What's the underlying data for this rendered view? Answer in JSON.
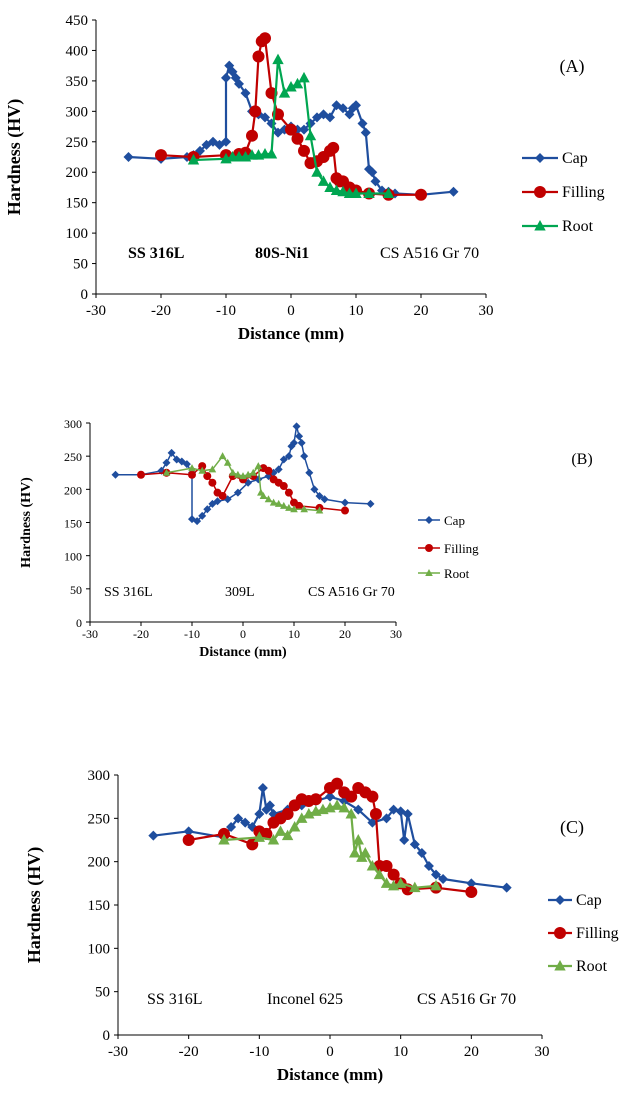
{
  "chart_data": [
    {
      "type": "line",
      "panel_label": "(A)",
      "xlabel": "Distance (mm)",
      "ylabel": "Hardness (HV)",
      "xlim": [
        -30,
        30
      ],
      "ylim": [
        0,
        450
      ],
      "xticks": [
        -30,
        -20,
        -10,
        0,
        10,
        20,
        30
      ],
      "yticks": [
        0,
        50,
        100,
        150,
        200,
        250,
        300,
        350,
        400,
        450
      ],
      "region_labels": [
        "SS 316L",
        "80S-Ni1",
        "CS A516 Gr 70"
      ],
      "legend_position": "right",
      "series": [
        {
          "name": "Cap",
          "color": "#1F4E9E",
          "marker": "diamond",
          "points": [
            [
              -25,
              225
            ],
            [
              -20,
              222
            ],
            [
              -16,
              225
            ],
            [
              -15,
              228
            ],
            [
              -14,
              235
            ],
            [
              -13,
              245
            ],
            [
              -12,
              250
            ],
            [
              -11,
              245
            ],
            [
              -10,
              250
            ],
            [
              -10,
              355
            ],
            [
              -9.5,
              375
            ],
            [
              -9,
              365
            ],
            [
              -8.5,
              355
            ],
            [
              -8,
              345
            ],
            [
              -7,
              330
            ],
            [
              -6,
              300
            ],
            [
              -5,
              295
            ],
            [
              -4,
              290
            ],
            [
              -3,
              280
            ],
            [
              -2,
              265
            ],
            [
              -1,
              270
            ],
            [
              0,
              275
            ],
            [
              1,
              270
            ],
            [
              2,
              270
            ],
            [
              3,
              280
            ],
            [
              4,
              290
            ],
            [
              5,
              295
            ],
            [
              6,
              290
            ],
            [
              7,
              310
            ],
            [
              8,
              305
            ],
            [
              9,
              295
            ],
            [
              9.5,
              305
            ],
            [
              10,
              310
            ],
            [
              11,
              280
            ],
            [
              11.5,
              265
            ],
            [
              12,
              205
            ],
            [
              12.5,
              200
            ],
            [
              13,
              185
            ],
            [
              14,
              170
            ],
            [
              15,
              168
            ],
            [
              16,
              165
            ],
            [
              20,
              163
            ],
            [
              25,
              168
            ]
          ]
        },
        {
          "name": "Filling",
          "color": "#C00000",
          "marker": "circle",
          "points": [
            [
              -20,
              228
            ],
            [
              -15,
              225
            ],
            [
              -10,
              228
            ],
            [
              -8,
              230
            ],
            [
              -7,
              232
            ],
            [
              -6,
              260
            ],
            [
              -5.5,
              300
            ],
            [
              -5,
              390
            ],
            [
              -4.5,
              415
            ],
            [
              -4,
              420
            ],
            [
              -3,
              330
            ],
            [
              -2,
              295
            ],
            [
              0,
              270
            ],
            [
              1,
              255
            ],
            [
              2,
              235
            ],
            [
              3,
              215
            ],
            [
              4,
              218
            ],
            [
              5,
              225
            ],
            [
              6,
              235
            ],
            [
              6.5,
              240
            ],
            [
              7,
              190
            ],
            [
              7.5,
              185
            ],
            [
              8,
              185
            ],
            [
              9,
              175
            ],
            [
              10,
              170
            ],
            [
              12,
              165
            ],
            [
              15,
              163
            ],
            [
              20,
              163
            ]
          ]
        },
        {
          "name": "Root",
          "color": "#00A651",
          "marker": "triangle",
          "points": [
            [
              -15,
              220
            ],
            [
              -10,
              222
            ],
            [
              -9,
              225
            ],
            [
              -8,
              225
            ],
            [
              -7,
              225
            ],
            [
              -6,
              228
            ],
            [
              -5,
              228
            ],
            [
              -4,
              230
            ],
            [
              -3,
              230
            ],
            [
              -2,
              385
            ],
            [
              -1,
              330
            ],
            [
              0,
              340
            ],
            [
              1,
              345
            ],
            [
              2,
              355
            ],
            [
              3,
              260
            ],
            [
              4,
              200
            ],
            [
              5,
              185
            ],
            [
              6,
              175
            ],
            [
              7,
              170
            ],
            [
              8,
              168
            ],
            [
              9,
              165
            ],
            [
              10,
              165
            ],
            [
              12,
              165
            ],
            [
              15,
              165
            ]
          ]
        }
      ]
    },
    {
      "type": "line",
      "panel_label": "(B)",
      "xlabel": "Distance (mm)",
      "ylabel": "Hardness (HV)",
      "xlim": [
        -30,
        30
      ],
      "ylim": [
        0,
        300
      ],
      "xticks": [
        -30,
        -20,
        -10,
        0,
        10,
        20,
        30
      ],
      "yticks": [
        0,
        50,
        100,
        150,
        200,
        250,
        300
      ],
      "region_labels": [
        "SS 316L",
        "309L",
        "CS A516 Gr 70"
      ],
      "legend_position": "right",
      "series": [
        {
          "name": "Cap",
          "color": "#1F4E9E",
          "marker": "diamond",
          "points": [
            [
              -25,
              222
            ],
            [
              -20,
              222
            ],
            [
              -16,
              228
            ],
            [
              -15,
              240
            ],
            [
              -14,
              255
            ],
            [
              -13,
              245
            ],
            [
              -12,
              242
            ],
            [
              -11,
              238
            ],
            [
              -10,
              225
            ],
            [
              -10,
              155
            ],
            [
              -9,
              152
            ],
            [
              -8,
              160
            ],
            [
              -7,
              170
            ],
            [
              -6,
              178
            ],
            [
              -5,
              182
            ],
            [
              -3,
              185
            ],
            [
              -1,
              195
            ],
            [
              1,
              210
            ],
            [
              3,
              215
            ],
            [
              5,
              220
            ],
            [
              6,
              225
            ],
            [
              7,
              230
            ],
            [
              8,
              245
            ],
            [
              9,
              250
            ],
            [
              9.5,
              265
            ],
            [
              10,
              270
            ],
            [
              10.5,
              295
            ],
            [
              11,
              280
            ],
            [
              11.5,
              270
            ],
            [
              12,
              250
            ],
            [
              13,
              225
            ],
            [
              14,
              200
            ],
            [
              15,
              190
            ],
            [
              16,
              185
            ],
            [
              20,
              180
            ],
            [
              25,
              178
            ]
          ]
        },
        {
          "name": "Filling",
          "color": "#C00000",
          "marker": "circle",
          "points": [
            [
              -20,
              222
            ],
            [
              -15,
              225
            ],
            [
              -10,
              222
            ],
            [
              -8,
              235
            ],
            [
              -7,
              220
            ],
            [
              -6,
              210
            ],
            [
              -5,
              195
            ],
            [
              -4,
              190
            ],
            [
              -2,
              220
            ],
            [
              0,
              215
            ],
            [
              2,
              220
            ],
            [
              4,
              232
            ],
            [
              5,
              228
            ],
            [
              6,
              215
            ],
            [
              7,
              210
            ],
            [
              8,
              205
            ],
            [
              9,
              195
            ],
            [
              10,
              180
            ],
            [
              11,
              175
            ],
            [
              15,
              172
            ],
            [
              20,
              168
            ]
          ]
        },
        {
          "name": "Root",
          "color": "#70AD47",
          "marker": "triangle",
          "points": [
            [
              -15,
              225
            ],
            [
              -10,
              232
            ],
            [
              -8,
              228
            ],
            [
              -6,
              230
            ],
            [
              -4,
              250
            ],
            [
              -3,
              240
            ],
            [
              -2,
              225
            ],
            [
              -1,
              222
            ],
            [
              0,
              220
            ],
            [
              1,
              222
            ],
            [
              2,
              225
            ],
            [
              3,
              235
            ],
            [
              3.5,
              195
            ],
            [
              4,
              190
            ],
            [
              5,
              185
            ],
            [
              6,
              180
            ],
            [
              7,
              178
            ],
            [
              8,
              175
            ],
            [
              9,
              172
            ],
            [
              10,
              170
            ],
            [
              12,
              170
            ],
            [
              15,
              168
            ]
          ]
        }
      ]
    },
    {
      "type": "line",
      "panel_label": "(C)",
      "xlabel": "Distance (mm)",
      "ylabel": "Hardness (HV)",
      "xlim": [
        -30,
        30
      ],
      "ylim": [
        0,
        300
      ],
      "xticks": [
        -30,
        -20,
        -10,
        0,
        10,
        20,
        30
      ],
      "yticks": [
        0,
        50,
        100,
        150,
        200,
        250,
        300
      ],
      "region_labels": [
        "SS 316L",
        "Inconel 625",
        "CS A516 Gr 70"
      ],
      "legend_position": "right",
      "series": [
        {
          "name": "Cap",
          "color": "#1F4E9E",
          "marker": "diamond",
          "points": [
            [
              -25,
              230
            ],
            [
              -20,
              235
            ],
            [
              -15,
              228
            ],
            [
              -14,
              240
            ],
            [
              -13,
              250
            ],
            [
              -12,
              245
            ],
            [
              -11,
              240
            ],
            [
              -10,
              255
            ],
            [
              -9.5,
              285
            ],
            [
              -9,
              260
            ],
            [
              -8.5,
              265
            ],
            [
              -8,
              255
            ],
            [
              -6,
              260
            ],
            [
              -4,
              265
            ],
            [
              -2,
              270
            ],
            [
              0,
              275
            ],
            [
              2,
              270
            ],
            [
              4,
              260
            ],
            [
              6,
              245
            ],
            [
              8,
              250
            ],
            [
              9,
              260
            ],
            [
              10,
              258
            ],
            [
              10.5,
              225
            ],
            [
              11,
              255
            ],
            [
              12,
              220
            ],
            [
              13,
              210
            ],
            [
              14,
              195
            ],
            [
              15,
              185
            ],
            [
              16,
              180
            ],
            [
              20,
              175
            ],
            [
              25,
              170
            ]
          ]
        },
        {
          "name": "Filling",
          "color": "#C00000",
          "marker": "circle",
          "points": [
            [
              -20,
              225
            ],
            [
              -15,
              232
            ],
            [
              -11,
              220
            ],
            [
              -10,
              235
            ],
            [
              -9,
              232
            ],
            [
              -8,
              245
            ],
            [
              -7,
              250
            ],
            [
              -6,
              255
            ],
            [
              -5,
              265
            ],
            [
              -4,
              272
            ],
            [
              -3,
              270
            ],
            [
              -2,
              272
            ],
            [
              0,
              285
            ],
            [
              1,
              290
            ],
            [
              2,
              280
            ],
            [
              3,
              275
            ],
            [
              4,
              285
            ],
            [
              5,
              280
            ],
            [
              6,
              275
            ],
            [
              6.5,
              255
            ],
            [
              7,
              195
            ],
            [
              8,
              195
            ],
            [
              9,
              185
            ],
            [
              10,
              175
            ],
            [
              11,
              168
            ],
            [
              15,
              170
            ],
            [
              20,
              165
            ]
          ]
        },
        {
          "name": "Root",
          "color": "#70AD47",
          "marker": "triangle",
          "points": [
            [
              -15,
              225
            ],
            [
              -10,
              228
            ],
            [
              -8,
              225
            ],
            [
              -7,
              235
            ],
            [
              -6,
              230
            ],
            [
              -5,
              240
            ],
            [
              -4,
              250
            ],
            [
              -3,
              255
            ],
            [
              -2,
              258
            ],
            [
              -1,
              260
            ],
            [
              0,
              262
            ],
            [
              1,
              265
            ],
            [
              2,
              262
            ],
            [
              3,
              255
            ],
            [
              3.5,
              210
            ],
            [
              4,
              225
            ],
            [
              4.5,
              205
            ],
            [
              5,
              210
            ],
            [
              6,
              195
            ],
            [
              7,
              185
            ],
            [
              8,
              175
            ],
            [
              9,
              172
            ],
            [
              10,
              175
            ],
            [
              12,
              170
            ],
            [
              15,
              172
            ]
          ]
        }
      ]
    }
  ]
}
